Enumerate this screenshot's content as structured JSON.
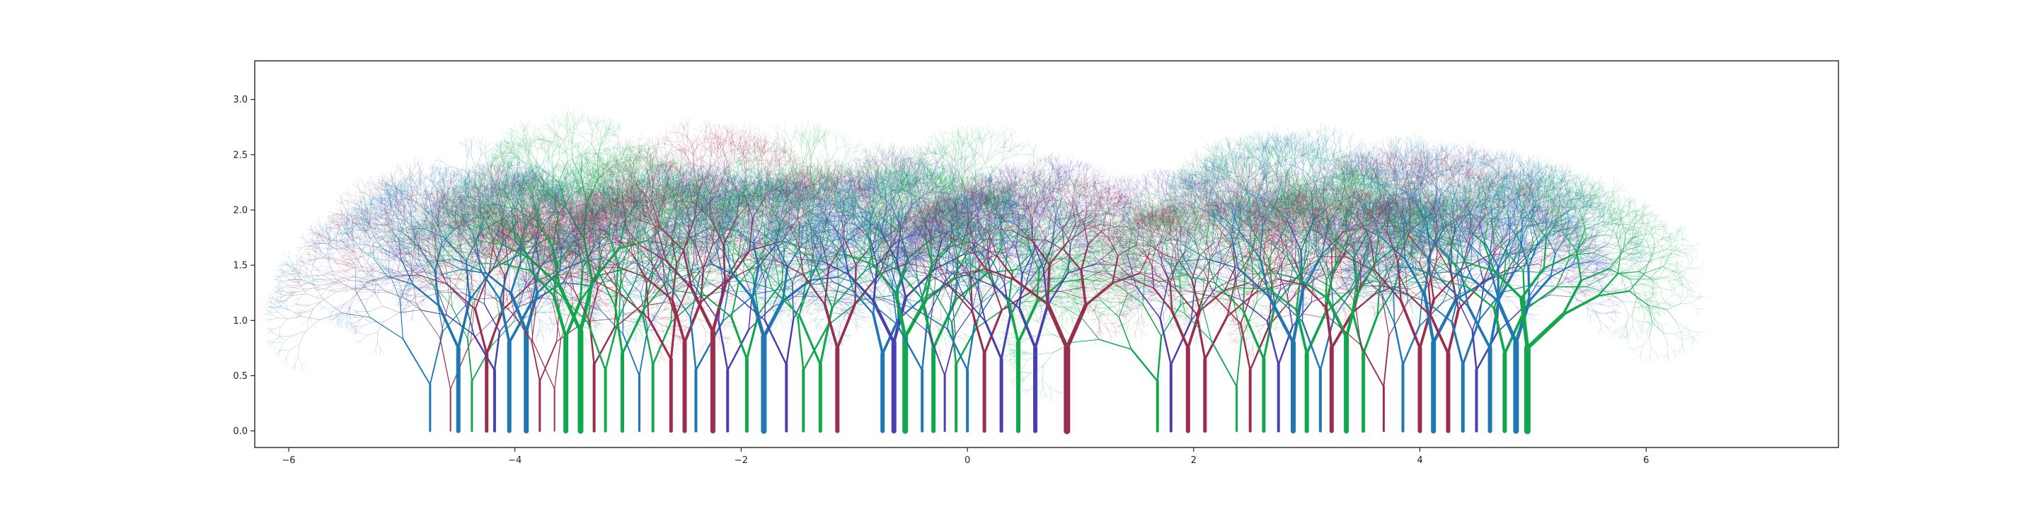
{
  "chart_data": {
    "type": "line",
    "title": "",
    "xlabel": "",
    "ylabel": "",
    "xlim": [
      -6.3,
      7.7
    ],
    "ylim": [
      -0.15,
      3.35
    ],
    "grid": false,
    "legend": "none",
    "x_ticks": [
      {
        "value": -6,
        "label": "−6"
      },
      {
        "value": -4,
        "label": "−4"
      },
      {
        "value": -2,
        "label": "−2"
      },
      {
        "value": 0,
        "label": "0"
      },
      {
        "value": 2,
        "label": "2"
      },
      {
        "value": 4,
        "label": "4"
      },
      {
        "value": 6,
        "label": "6"
      }
    ],
    "y_ticks": [
      {
        "value": 0.0,
        "label": "0.0"
      },
      {
        "value": 0.5,
        "label": "0.5"
      },
      {
        "value": 1.0,
        "label": "1.0"
      },
      {
        "value": 1.5,
        "label": "1.5"
      },
      {
        "value": 2.0,
        "label": "2.0"
      },
      {
        "value": 2.5,
        "label": "2.5"
      },
      {
        "value": 3.0,
        "label": "3.0"
      }
    ],
    "colors": {
      "blue": "#1f77b4",
      "green": "#11a84d",
      "crimson": "#9b2d4f",
      "indigo": "#4a3fb0"
    },
    "trees": [
      {
        "x": -4.75,
        "h": 0.42,
        "spread": 0.7,
        "angle": -0.15,
        "color": "blue",
        "w": 3
      },
      {
        "x": -4.57,
        "h": 0.38,
        "spread": 0.55,
        "angle": 0.1,
        "color": "crimson",
        "w": 2
      },
      {
        "x": -4.5,
        "h": 0.75,
        "spread": 0.6,
        "angle": -0.1,
        "color": "blue",
        "w": 6
      },
      {
        "x": -4.38,
        "h": 0.45,
        "spread": 0.55,
        "angle": 0.2,
        "color": "green",
        "w": 3
      },
      {
        "x": -4.25,
        "h": 0.7,
        "spread": 0.55,
        "angle": 0.05,
        "color": "crimson",
        "w": 5
      },
      {
        "x": -4.18,
        "h": 0.55,
        "spread": 0.6,
        "angle": -0.2,
        "color": "indigo",
        "w": 4
      },
      {
        "x": -4.05,
        "h": 0.8,
        "spread": 0.65,
        "angle": 0.15,
        "color": "blue",
        "w": 6
      },
      {
        "x": -3.9,
        "h": 0.9,
        "spread": 0.6,
        "angle": -0.05,
        "color": "blue",
        "w": 7
      },
      {
        "x": -3.78,
        "h": 0.45,
        "spread": 0.55,
        "angle": 0.1,
        "color": "crimson",
        "w": 3
      },
      {
        "x": -3.65,
        "h": 0.38,
        "spread": 0.5,
        "angle": -0.15,
        "color": "crimson",
        "w": 2
      },
      {
        "x": -3.55,
        "h": 0.85,
        "spread": 0.6,
        "angle": 0.05,
        "color": "green",
        "w": 7
      },
      {
        "x": -3.42,
        "h": 0.9,
        "spread": 0.6,
        "angle": -0.1,
        "color": "green",
        "w": 8
      },
      {
        "x": -3.3,
        "h": 0.6,
        "spread": 0.55,
        "angle": 0.2,
        "color": "crimson",
        "w": 4
      },
      {
        "x": -3.2,
        "h": 0.55,
        "spread": 0.55,
        "angle": -0.05,
        "color": "green",
        "w": 4
      },
      {
        "x": -3.05,
        "h": 0.7,
        "spread": 0.55,
        "angle": 0.15,
        "color": "green",
        "w": 5
      },
      {
        "x": -2.9,
        "h": 0.5,
        "spread": 0.5,
        "angle": -0.1,
        "color": "blue",
        "w": 3
      },
      {
        "x": -2.78,
        "h": 0.6,
        "spread": 0.55,
        "angle": 0.1,
        "color": "green",
        "w": 4
      },
      {
        "x": -2.62,
        "h": 0.65,
        "spread": 0.55,
        "angle": -0.2,
        "color": "crimson",
        "w": 5
      },
      {
        "x": -2.5,
        "h": 0.8,
        "spread": 0.6,
        "angle": 0.05,
        "color": "crimson",
        "w": 6
      },
      {
        "x": -2.4,
        "h": 0.55,
        "spread": 0.55,
        "angle": 0.2,
        "color": "blue",
        "w": 4
      },
      {
        "x": -2.25,
        "h": 0.9,
        "spread": 0.65,
        "angle": -0.1,
        "color": "crimson",
        "w": 7
      },
      {
        "x": -2.12,
        "h": 0.55,
        "spread": 0.6,
        "angle": 0.15,
        "color": "indigo",
        "w": 4
      },
      {
        "x": -1.95,
        "h": 0.65,
        "spread": 0.55,
        "angle": -0.05,
        "color": "green",
        "w": 5
      },
      {
        "x": -1.8,
        "h": 0.85,
        "spread": 0.7,
        "angle": 0.1,
        "color": "blue",
        "w": 8
      },
      {
        "x": -1.6,
        "h": 0.6,
        "spread": 0.55,
        "angle": -0.15,
        "color": "indigo",
        "w": 4
      },
      {
        "x": -1.45,
        "h": 0.55,
        "spread": 0.55,
        "angle": 0.2,
        "color": "green",
        "w": 4
      },
      {
        "x": -1.3,
        "h": 0.6,
        "spread": 0.55,
        "angle": -0.1,
        "color": "green",
        "w": 5
      },
      {
        "x": -1.15,
        "h": 0.75,
        "spread": 0.6,
        "angle": 0.05,
        "color": "crimson",
        "w": 6
      },
      {
        "x": -0.75,
        "h": 0.7,
        "spread": 0.6,
        "angle": 0.1,
        "color": "blue",
        "w": 6
      },
      {
        "x": -0.65,
        "h": 0.8,
        "spread": 0.65,
        "angle": -0.1,
        "color": "indigo",
        "w": 7
      },
      {
        "x": -0.55,
        "h": 0.85,
        "spread": 0.65,
        "angle": 0.15,
        "color": "green",
        "w": 8
      },
      {
        "x": -0.4,
        "h": 0.55,
        "spread": 0.55,
        "angle": -0.2,
        "color": "blue",
        "w": 4
      },
      {
        "x": -0.3,
        "h": 0.75,
        "spread": 0.6,
        "angle": 0.1,
        "color": "green",
        "w": 6
      },
      {
        "x": -0.2,
        "h": 0.5,
        "spread": 0.55,
        "angle": -0.05,
        "color": "indigo",
        "w": 3
      },
      {
        "x": -0.1,
        "h": 0.6,
        "spread": 0.55,
        "angle": 0.2,
        "color": "green",
        "w": 4
      },
      {
        "x": 0.0,
        "h": 0.55,
        "spread": 0.55,
        "angle": -0.15,
        "color": "blue",
        "w": 4
      },
      {
        "x": 0.15,
        "h": 0.7,
        "spread": 0.6,
        "angle": 0.05,
        "color": "crimson",
        "w": 5
      },
      {
        "x": 0.3,
        "h": 0.65,
        "spread": 0.55,
        "angle": -0.1,
        "color": "indigo",
        "w": 5
      },
      {
        "x": 0.45,
        "h": 0.8,
        "spread": 0.6,
        "angle": 0.1,
        "color": "green",
        "w": 6
      },
      {
        "x": 0.6,
        "h": 0.75,
        "spread": 0.6,
        "angle": -0.05,
        "color": "indigo",
        "w": 6
      },
      {
        "x": 0.88,
        "h": 0.75,
        "spread": 0.75,
        "angle": 0.0,
        "color": "crimson",
        "w": 9
      },
      {
        "x": 1.68,
        "h": 0.45,
        "spread": 0.7,
        "angle": -0.3,
        "color": "green",
        "w": 4
      },
      {
        "x": 1.8,
        "h": 0.6,
        "spread": 0.6,
        "angle": 0.1,
        "color": "indigo",
        "w": 4
      },
      {
        "x": 1.95,
        "h": 0.75,
        "spread": 0.65,
        "angle": -0.05,
        "color": "crimson",
        "w": 6
      },
      {
        "x": 2.1,
        "h": 0.65,
        "spread": 0.6,
        "angle": 0.15,
        "color": "crimson",
        "w": 5
      },
      {
        "x": 2.38,
        "h": 0.4,
        "spread": 0.55,
        "angle": -0.2,
        "color": "green",
        "w": 3
      },
      {
        "x": 2.5,
        "h": 0.55,
        "spread": 0.55,
        "angle": 0.1,
        "color": "crimson",
        "w": 4
      },
      {
        "x": 2.62,
        "h": 0.65,
        "spread": 0.55,
        "angle": -0.1,
        "color": "green",
        "w": 5
      },
      {
        "x": 2.75,
        "h": 0.6,
        "spread": 0.55,
        "angle": 0.05,
        "color": "indigo",
        "w": 4
      },
      {
        "x": 2.88,
        "h": 0.8,
        "spread": 0.6,
        "angle": -0.15,
        "color": "blue",
        "w": 7
      },
      {
        "x": 3.0,
        "h": 0.7,
        "spread": 0.6,
        "angle": 0.1,
        "color": "green",
        "w": 6
      },
      {
        "x": 3.12,
        "h": 0.55,
        "spread": 0.55,
        "angle": -0.05,
        "color": "blue",
        "w": 4
      },
      {
        "x": 3.22,
        "h": 0.75,
        "spread": 0.6,
        "angle": 0.2,
        "color": "crimson",
        "w": 6
      },
      {
        "x": 3.35,
        "h": 0.85,
        "spread": 0.65,
        "angle": -0.1,
        "color": "green",
        "w": 7
      },
      {
        "x": 3.5,
        "h": 0.7,
        "spread": 0.55,
        "angle": 0.05,
        "color": "green",
        "w": 5
      },
      {
        "x": 3.68,
        "h": 0.4,
        "spread": 0.55,
        "angle": -0.2,
        "color": "crimson",
        "w": 3
      },
      {
        "x": 3.85,
        "h": 0.6,
        "spread": 0.55,
        "angle": 0.1,
        "color": "blue",
        "w": 4
      },
      {
        "x": 4.0,
        "h": 0.75,
        "spread": 0.6,
        "angle": -0.05,
        "color": "crimson",
        "w": 6
      },
      {
        "x": 4.12,
        "h": 0.8,
        "spread": 0.6,
        "angle": 0.15,
        "color": "blue",
        "w": 7
      },
      {
        "x": 4.25,
        "h": 0.7,
        "spread": 0.6,
        "angle": -0.1,
        "color": "crimson",
        "w": 6
      },
      {
        "x": 4.38,
        "h": 0.6,
        "spread": 0.55,
        "angle": 0.05,
        "color": "blue",
        "w": 5
      },
      {
        "x": 4.5,
        "h": 0.55,
        "spread": 0.55,
        "angle": 0.2,
        "color": "indigo",
        "w": 4
      },
      {
        "x": 4.62,
        "h": 0.75,
        "spread": 0.6,
        "angle": -0.15,
        "color": "blue",
        "w": 6
      },
      {
        "x": 4.75,
        "h": 0.7,
        "spread": 0.6,
        "angle": 0.1,
        "color": "green",
        "w": 6
      },
      {
        "x": 4.85,
        "h": 0.8,
        "spread": 0.65,
        "angle": -0.05,
        "color": "blue",
        "w": 8
      },
      {
        "x": 4.95,
        "h": 0.75,
        "spread": 0.85,
        "angle": 0.35,
        "color": "green",
        "w": 9
      }
    ]
  }
}
